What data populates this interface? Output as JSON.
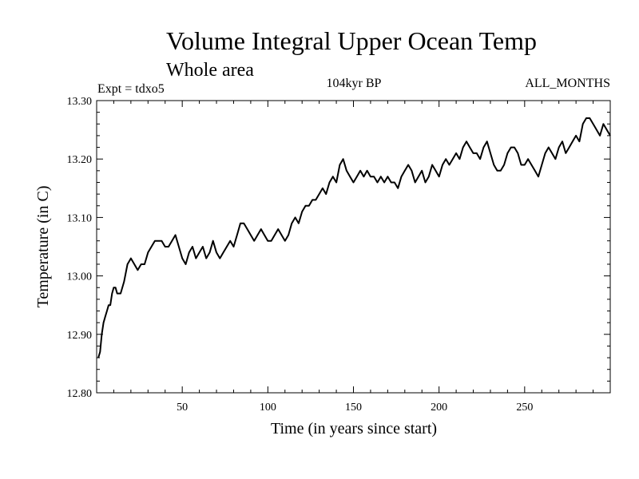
{
  "chart_data": {
    "type": "line",
    "title": "Volume Integral Upper Ocean Temp",
    "subtitle": "Whole area",
    "annotations": {
      "left": "Expt = tdxo5",
      "center": "104kyr BP",
      "right": "ALL_MONTHS"
    },
    "xlabel": "Time (in years since start)",
    "ylabel": "Temperature (in C)",
    "xlim": [
      0,
      300
    ],
    "ylim": [
      12.8,
      13.3
    ],
    "x_ticks": [
      50,
      100,
      150,
      200,
      250
    ],
    "y_ticks": [
      "12.80",
      "12.90",
      "13.00",
      "13.10",
      "13.20",
      "13.30"
    ],
    "grid": false,
    "series": [
      {
        "color": "#000000",
        "x": [
          1,
          2,
          3,
          4,
          5,
          6,
          7,
          8,
          9,
          10,
          11,
          12,
          14,
          16,
          18,
          20,
          22,
          24,
          26,
          28,
          30,
          32,
          34,
          36,
          38,
          40,
          42,
          44,
          46,
          48,
          50,
          52,
          54,
          56,
          58,
          60,
          62,
          64,
          66,
          68,
          70,
          72,
          74,
          76,
          78,
          80,
          82,
          84,
          86,
          88,
          90,
          92,
          94,
          96,
          98,
          100,
          102,
          104,
          106,
          108,
          110,
          112,
          114,
          116,
          118,
          120,
          122,
          124,
          126,
          128,
          130,
          132,
          134,
          136,
          138,
          140,
          142,
          144,
          146,
          148,
          150,
          152,
          154,
          156,
          158,
          160,
          162,
          164,
          166,
          168,
          170,
          172,
          174,
          176,
          178,
          180,
          182,
          184,
          186,
          188,
          190,
          192,
          194,
          196,
          198,
          200,
          202,
          204,
          206,
          208,
          210,
          212,
          214,
          216,
          218,
          220,
          222,
          224,
          226,
          228,
          230,
          232,
          234,
          236,
          238,
          240,
          242,
          244,
          246,
          248,
          250,
          252,
          254,
          256,
          258,
          260,
          262,
          264,
          266,
          268,
          270,
          272,
          274,
          276,
          278,
          280,
          282,
          284,
          286,
          288,
          290,
          292,
          294,
          296,
          298,
          300
        ],
        "values": [
          12.86,
          12.87,
          12.9,
          12.92,
          12.93,
          12.94,
          12.95,
          12.95,
          12.97,
          12.98,
          12.98,
          12.97,
          12.97,
          12.99,
          13.02,
          13.03,
          13.02,
          13.01,
          13.02,
          13.02,
          13.04,
          13.05,
          13.06,
          13.06,
          13.06,
          13.05,
          13.05,
          13.06,
          13.07,
          13.05,
          13.03,
          13.02,
          13.04,
          13.05,
          13.03,
          13.04,
          13.05,
          13.03,
          13.04,
          13.06,
          13.04,
          13.03,
          13.04,
          13.05,
          13.06,
          13.05,
          13.07,
          13.09,
          13.09,
          13.08,
          13.07,
          13.06,
          13.07,
          13.08,
          13.07,
          13.06,
          13.06,
          13.07,
          13.08,
          13.07,
          13.06,
          13.07,
          13.09,
          13.1,
          13.09,
          13.11,
          13.12,
          13.12,
          13.13,
          13.13,
          13.14,
          13.15,
          13.14,
          13.16,
          13.17,
          13.16,
          13.19,
          13.2,
          13.18,
          13.17,
          13.16,
          13.17,
          13.18,
          13.17,
          13.18,
          13.17,
          13.17,
          13.16,
          13.17,
          13.16,
          13.17,
          13.16,
          13.16,
          13.15,
          13.17,
          13.18,
          13.19,
          13.18,
          13.16,
          13.17,
          13.18,
          13.16,
          13.17,
          13.19,
          13.18,
          13.17,
          13.19,
          13.2,
          13.19,
          13.2,
          13.21,
          13.2,
          13.22,
          13.23,
          13.22,
          13.21,
          13.21,
          13.2,
          13.22,
          13.23,
          13.21,
          13.19,
          13.18,
          13.18,
          13.19,
          13.21,
          13.22,
          13.22,
          13.21,
          13.19,
          13.19,
          13.2,
          13.19,
          13.18,
          13.17,
          13.19,
          13.21,
          13.22,
          13.21,
          13.2,
          13.22,
          13.23,
          13.21,
          13.22,
          13.23,
          13.24,
          13.23,
          13.26,
          13.27,
          13.27,
          13.26,
          13.25,
          13.24,
          13.26,
          13.25,
          13.24
        ]
      }
    ]
  }
}
